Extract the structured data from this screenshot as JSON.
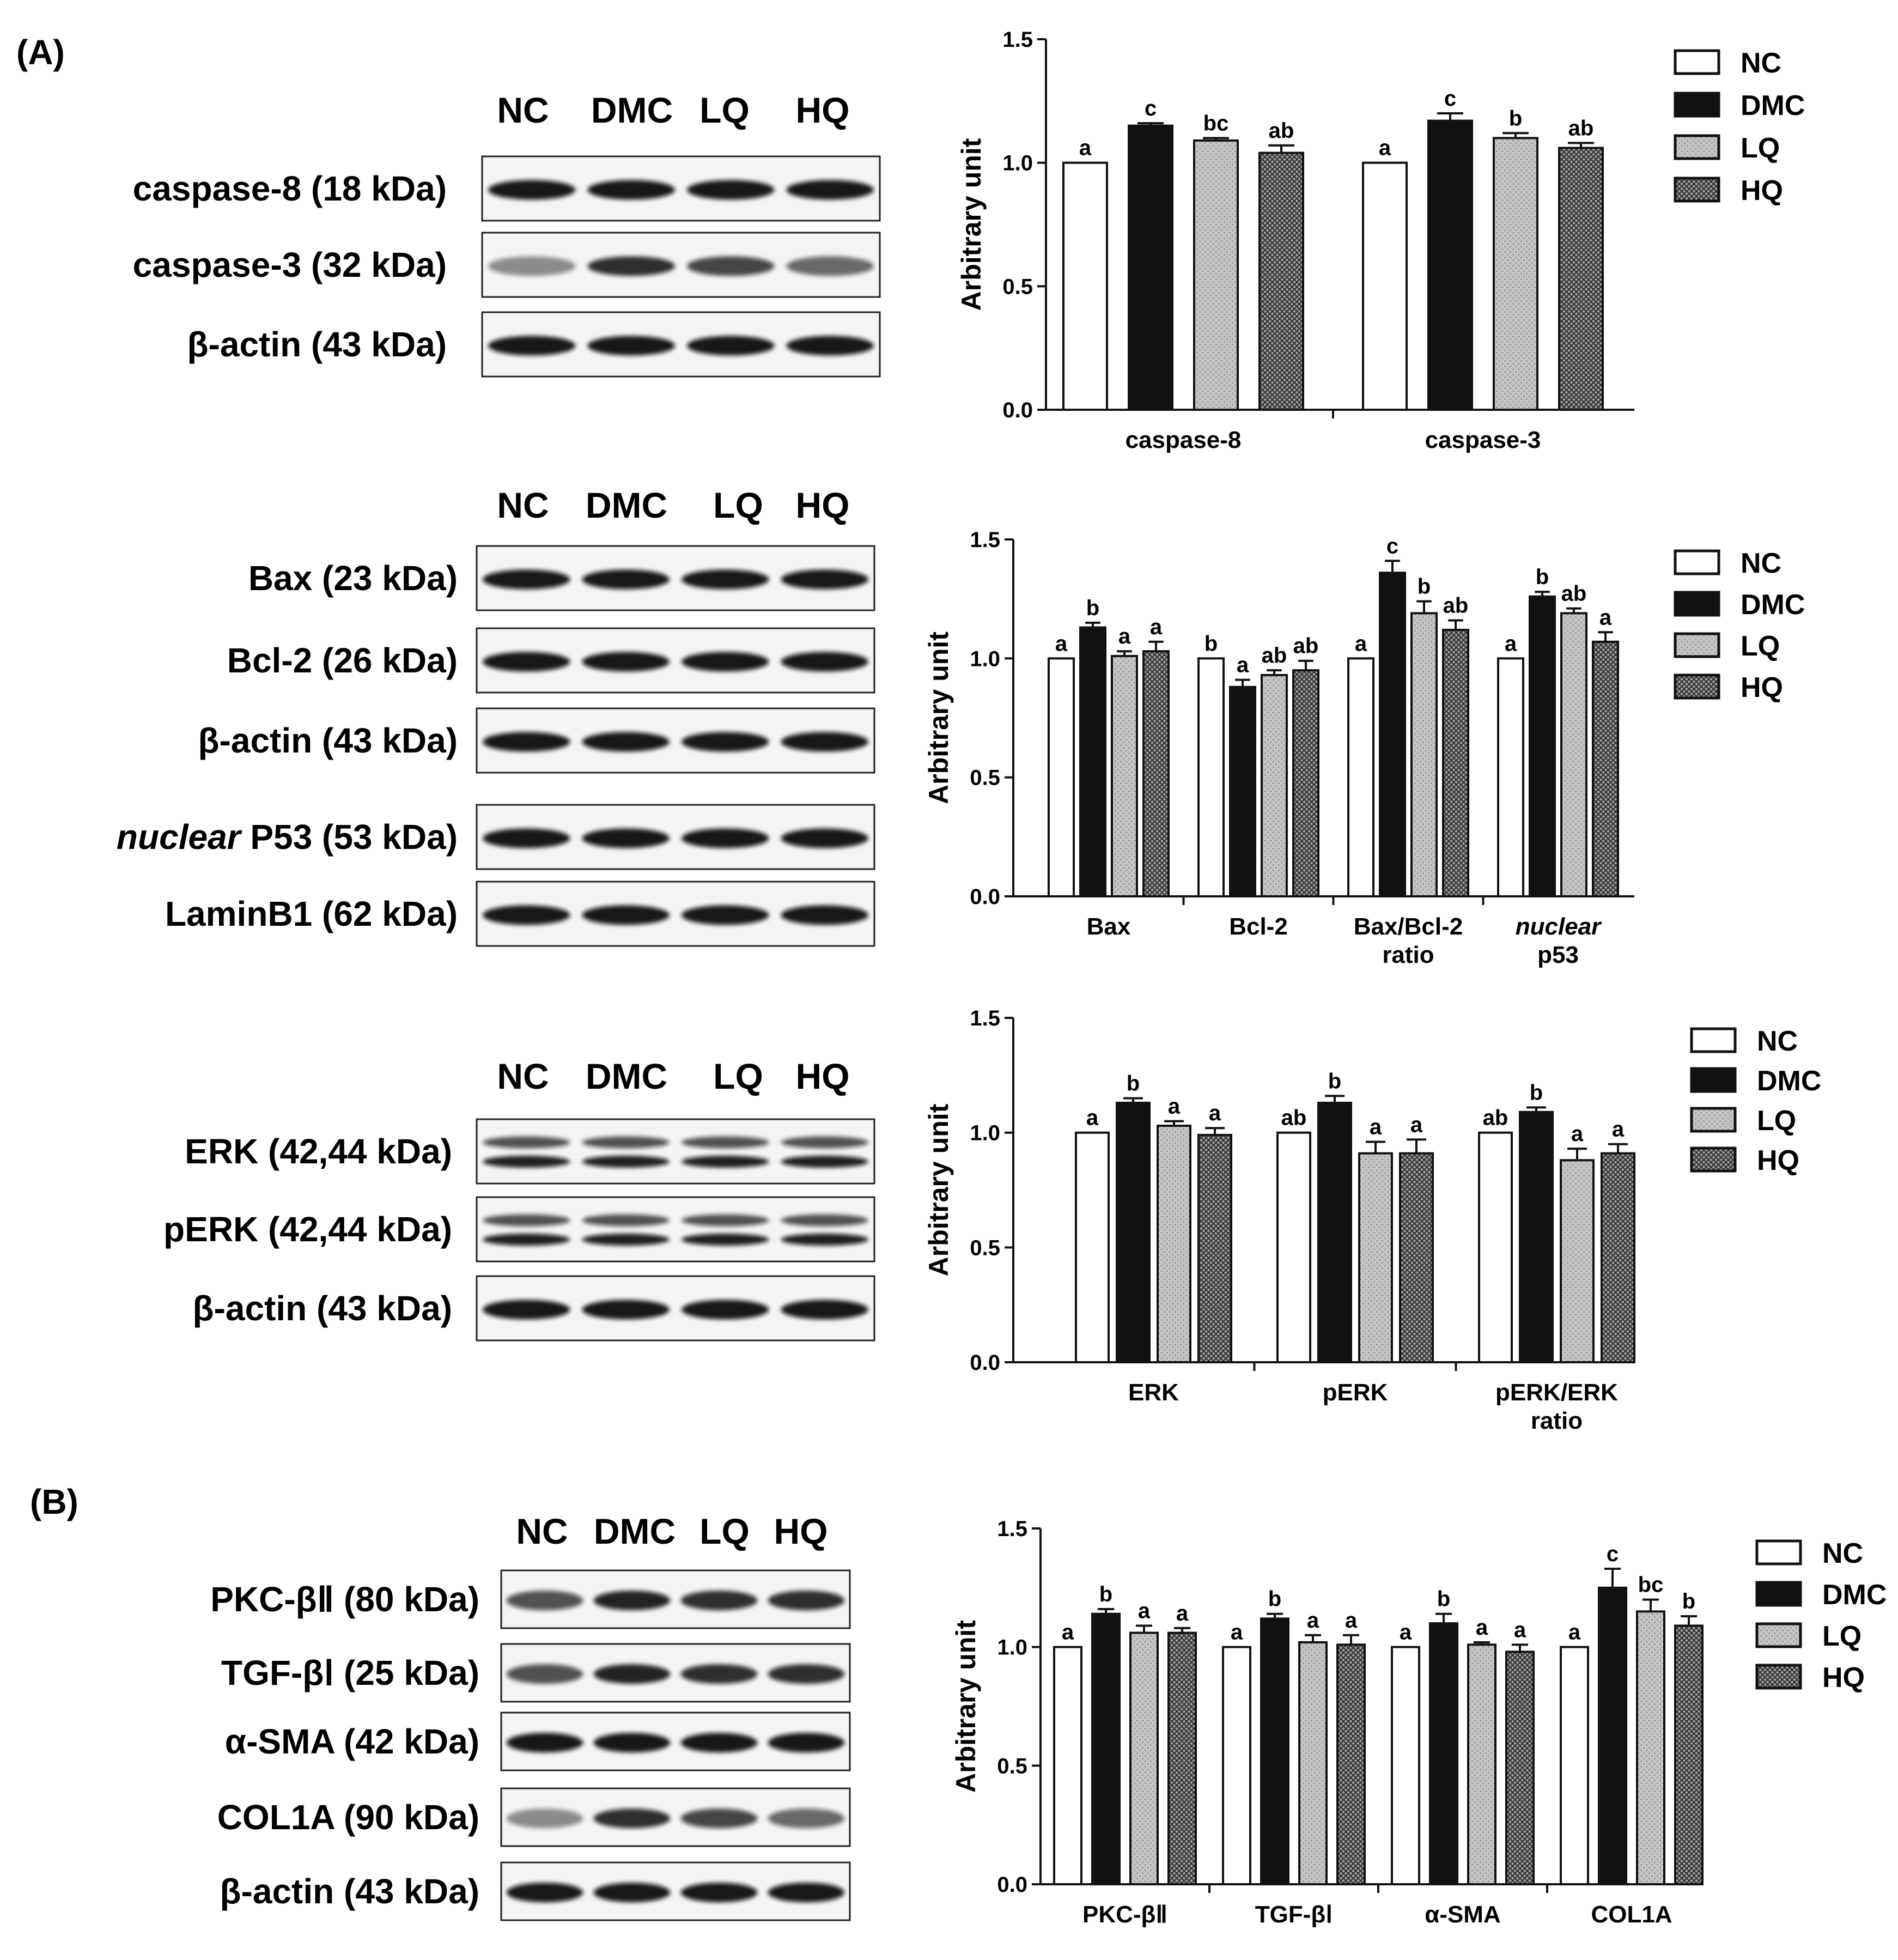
{
  "panels": [
    {
      "letter": "(A)",
      "blots": [
        {
          "lanes": [
            "NC",
            "DMC",
            "LQ",
            "HQ"
          ],
          "bands": [
            {
              "label": "caspase-8 (18 kDa)",
              "pattern": "single-strong"
            },
            {
              "label": "caspase-3 (32 kDa)",
              "pattern": "single-faint"
            },
            {
              "label": "β-actin (43 kDa)",
              "pattern": "single-strong"
            }
          ]
        },
        {
          "lanes": [
            "NC",
            "DMC",
            "LQ",
            "HQ"
          ],
          "bands": [
            {
              "label": "Bax (23 kDa)",
              "pattern": "single-strong"
            },
            {
              "label": "Bcl-2 (26 kDa)",
              "pattern": "single-strong"
            },
            {
              "label": "β-actin (43 kDa)",
              "pattern": "single-strong"
            },
            {
              "label_italic": "nuclear",
              "label": " P53 (53 kDa)",
              "pattern": "single-strong"
            },
            {
              "label": "LaminB1 (62 kDa)",
              "pattern": "single-strong"
            }
          ]
        },
        {
          "lanes": [
            "NC",
            "DMC",
            "LQ",
            "HQ"
          ],
          "bands": [
            {
              "label": "ERK (42,44 kDa)",
              "pattern": "double"
            },
            {
              "label": "pERK (42,44 kDa)",
              "pattern": "double"
            },
            {
              "label": "β-actin (43 kDa)",
              "pattern": "single-strong"
            }
          ]
        }
      ]
    },
    {
      "letter": "(B)",
      "blots": [
        {
          "lanes": [
            "NC",
            "DMC",
            "LQ",
            "HQ"
          ],
          "bands": [
            {
              "label": "PKC-βⅡ (80 kDa)",
              "pattern": "single-medium"
            },
            {
              "label": "TGF-βⅠ (25 kDa)",
              "pattern": "single-medium"
            },
            {
              "label": "α-SMA (42 kDa)",
              "pattern": "single-strong"
            },
            {
              "label": "COL1A (90 kDa)",
              "pattern": "single-faint"
            },
            {
              "label": "β-actin (43 kDa)",
              "pattern": "single-strong"
            }
          ]
        }
      ]
    }
  ],
  "legend": [
    "NC",
    "DMC",
    "LQ",
    "HQ"
  ],
  "series_colors": {
    "NC": "#ffffff",
    "DMC": "#111111",
    "LQ": "#bdbdbd",
    "HQ": "#7a7a7a"
  },
  "chart_data": [
    {
      "type": "bar",
      "ylabel": "Arbitrary unit",
      "ylim": [
        0,
        1.5
      ],
      "yticks": [
        "0.0",
        "0.5",
        "1.0",
        "1.5"
      ],
      "categories": [
        [
          "caspase-8"
        ],
        [
          "caspase-3"
        ]
      ],
      "series": [
        {
          "name": "NC",
          "values": [
            1.0,
            1.0
          ],
          "err": [
            0,
            0
          ],
          "sig": [
            "a",
            "a"
          ]
        },
        {
          "name": "DMC",
          "values": [
            1.15,
            1.17
          ],
          "err": [
            0.01,
            0.03
          ],
          "sig": [
            "c",
            "c"
          ]
        },
        {
          "name": "LQ",
          "values": [
            1.09,
            1.1
          ],
          "err": [
            0.01,
            0.02
          ],
          "sig": [
            "bc",
            "b"
          ]
        },
        {
          "name": "HQ",
          "values": [
            1.04,
            1.06
          ],
          "err": [
            0.03,
            0.02
          ],
          "sig": [
            "ab",
            "ab"
          ]
        }
      ]
    },
    {
      "type": "bar",
      "ylabel": "Arbitrary unit",
      "ylim": [
        0,
        1.5
      ],
      "yticks": [
        "0.0",
        "0.5",
        "1.0",
        "1.5"
      ],
      "categories": [
        [
          "Bax"
        ],
        [
          "Bcl-2"
        ],
        [
          "Bax/Bcl-2",
          "ratio"
        ],
        [
          "nuclear",
          "p53"
        ]
      ],
      "italic_first_line": [
        false,
        false,
        false,
        true
      ],
      "series": [
        {
          "name": "NC",
          "values": [
            1.0,
            1.0,
            1.0,
            1.0
          ],
          "err": [
            0,
            0,
            0,
            0
          ],
          "sig": [
            "a",
            "b",
            "a",
            "a"
          ]
        },
        {
          "name": "DMC",
          "values": [
            1.13,
            0.88,
            1.36,
            1.26
          ],
          "err": [
            0.02,
            0.03,
            0.05,
            0.02
          ],
          "sig": [
            "b",
            "a",
            "c",
            "b"
          ]
        },
        {
          "name": "LQ",
          "values": [
            1.01,
            0.93,
            1.19,
            1.19
          ],
          "err": [
            0.02,
            0.02,
            0.05,
            0.02
          ],
          "sig": [
            "a",
            "ab",
            "b",
            "ab"
          ]
        },
        {
          "name": "HQ",
          "values": [
            1.03,
            0.95,
            1.12,
            1.07
          ],
          "err": [
            0.04,
            0.04,
            0.04,
            0.04
          ],
          "sig": [
            "a",
            "ab",
            "ab",
            "a"
          ]
        }
      ]
    },
    {
      "type": "bar",
      "ylabel": "Arbitrary unit",
      "ylim": [
        0,
        1.5
      ],
      "yticks": [
        "0.0",
        "0.5",
        "1.0",
        "1.5"
      ],
      "categories": [
        [
          "ERK"
        ],
        [
          "pERK"
        ],
        [
          "pERK/ERK",
          "ratio"
        ]
      ],
      "series": [
        {
          "name": "NC",
          "values": [
            1.0,
            1.0,
            1.0
          ],
          "err": [
            0,
            0,
            0
          ],
          "sig": [
            "a",
            "ab",
            "ab"
          ]
        },
        {
          "name": "DMC",
          "values": [
            1.13,
            1.13,
            1.09
          ],
          "err": [
            0.02,
            0.03,
            0.02
          ],
          "sig": [
            "b",
            "b",
            "b"
          ]
        },
        {
          "name": "LQ",
          "values": [
            1.03,
            0.91,
            0.88
          ],
          "err": [
            0.02,
            0.05,
            0.05
          ],
          "sig": [
            "a",
            "a",
            "a"
          ]
        },
        {
          "name": "HQ",
          "values": [
            0.99,
            0.91,
            0.91
          ],
          "err": [
            0.03,
            0.06,
            0.04
          ],
          "sig": [
            "a",
            "a",
            "a"
          ]
        }
      ]
    },
    {
      "type": "bar",
      "ylabel": "Arbitrary unit",
      "ylim": [
        0,
        1.5
      ],
      "yticks": [
        "0.0",
        "0.5",
        "1.0",
        "1.5"
      ],
      "categories": [
        [
          "PKC-βⅡ"
        ],
        [
          "TGF-βⅠ"
        ],
        [
          "α-SMA"
        ],
        [
          "COL1A"
        ]
      ],
      "series": [
        {
          "name": "NC",
          "values": [
            1.0,
            1.0,
            1.0,
            1.0
          ],
          "err": [
            0,
            0,
            0,
            0
          ],
          "sig": [
            "a",
            "a",
            "a",
            "a"
          ]
        },
        {
          "name": "DMC",
          "values": [
            1.14,
            1.12,
            1.1,
            1.25
          ],
          "err": [
            0.02,
            0.02,
            0.04,
            0.08
          ],
          "sig": [
            "b",
            "b",
            "b",
            "c"
          ]
        },
        {
          "name": "LQ",
          "values": [
            1.06,
            1.02,
            1.01,
            1.15
          ],
          "err": [
            0.03,
            0.03,
            0.01,
            0.05
          ],
          "sig": [
            "a",
            "a",
            "a",
            "bc"
          ]
        },
        {
          "name": "HQ",
          "values": [
            1.06,
            1.01,
            0.98,
            1.09
          ],
          "err": [
            0.02,
            0.04,
            0.03,
            0.04
          ],
          "sig": [
            "a",
            "a",
            "a",
            "b"
          ]
        }
      ]
    }
  ]
}
